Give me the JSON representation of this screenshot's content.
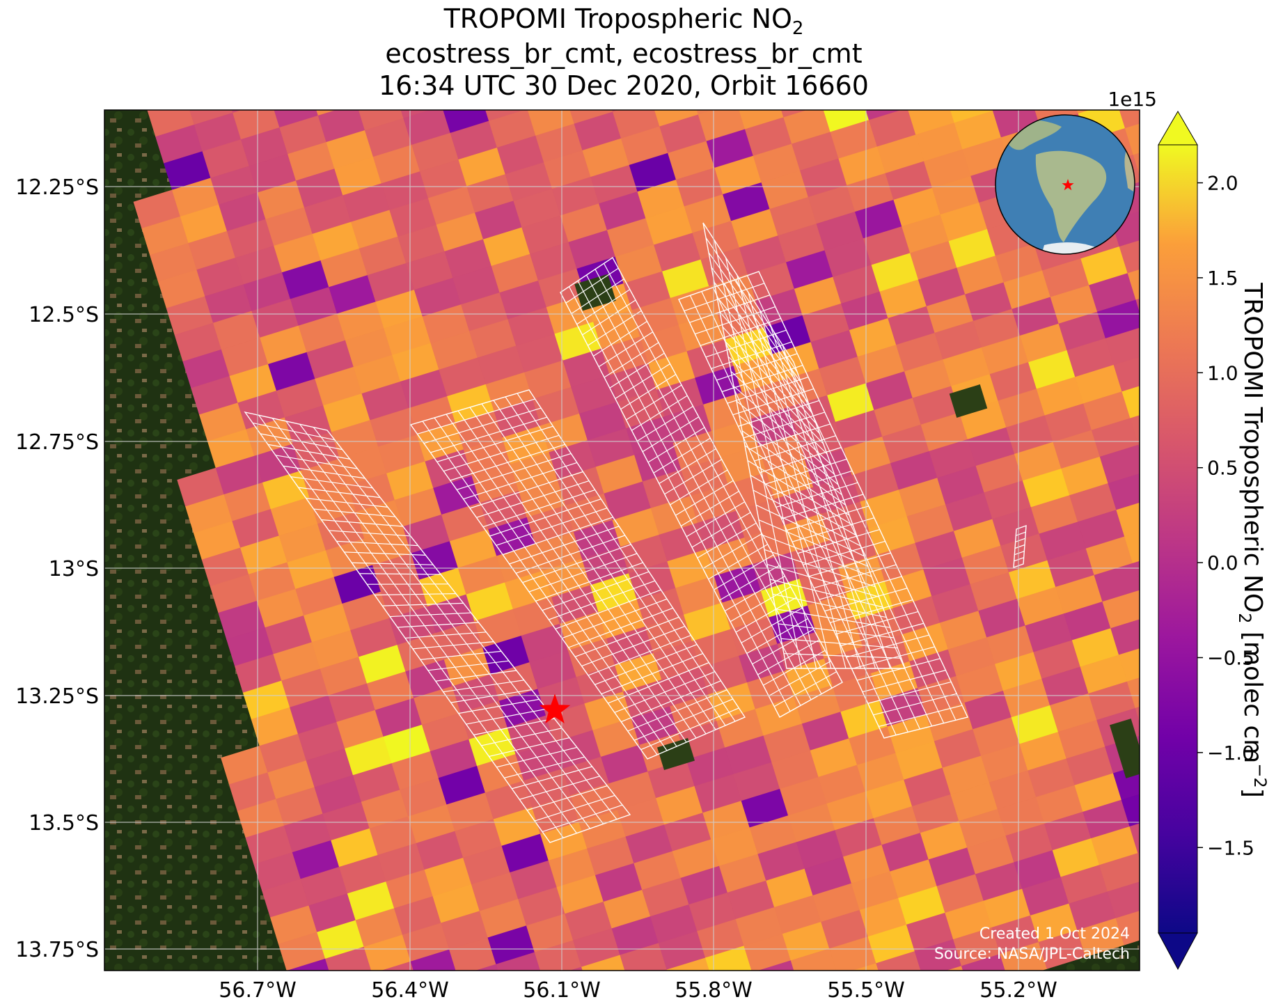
{
  "title": {
    "line1_prefix": "TROPOMI Tropospheric NO",
    "line1_sub": "2",
    "line2": "ecostress_br_cmt, ecostress_br_cmt",
    "line3": "16:34 UTC 30 Dec 2020, Orbit 16660"
  },
  "map": {
    "x_ticks": [
      "56.7°W",
      "56.4°W",
      "56.1°W",
      "55.8°W",
      "55.5°W",
      "55.2°W"
    ],
    "y_ticks": [
      "12.25°S",
      "12.5°S",
      "12.75°S",
      "13°S",
      "13.25°S",
      "13.5°S",
      "13.75°S"
    ],
    "credit_line1": "Created 1 Oct 2024",
    "credit_line2": "Source: NASA/JPL-Caltech",
    "target_marker": "red-star",
    "inset": "globe-locator",
    "grid": true
  },
  "colorbar": {
    "multiplier": "1e15",
    "ticks": [
      "2.0",
      "1.5",
      "1.0",
      "0.5",
      "0.0",
      "−0.5",
      "−1.0",
      "−1.5"
    ],
    "tick_values": [
      2.0,
      1.5,
      1.0,
      0.5,
      0.0,
      -0.5,
      -1.0,
      -1.5
    ],
    "range": [
      -1.95,
      2.2
    ],
    "label_prefix": "TROPOMI Tropospheric NO",
    "label_sub": "2",
    "label_mid": " [molec cm",
    "label_sup": "−2",
    "label_end": "]",
    "colormap": "plasma",
    "extend": "both"
  },
  "colors": {
    "land_dark": "#1f3212",
    "frame": "#000000",
    "grid": "#d0d0d0",
    "swath_outline": "#ffffff",
    "marker": "#ff0000"
  }
}
